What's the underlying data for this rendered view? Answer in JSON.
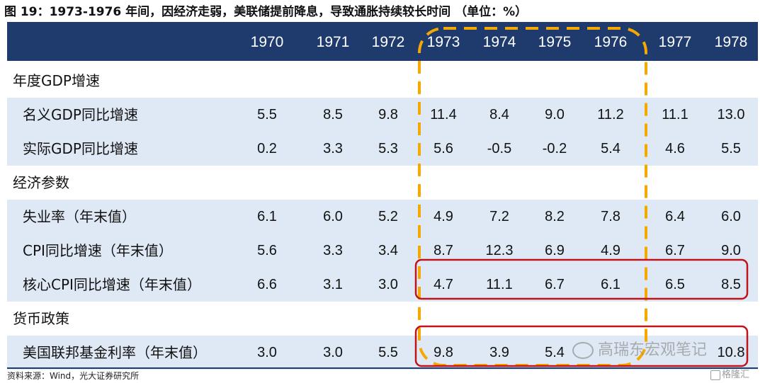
{
  "title": "图 19：1973-1976 年间，因经济走弱，美联储提前降息，导致通胀持续较长时间 （单位：%）",
  "years": [
    "1970",
    "1971",
    "1972",
    "1973",
    "1974",
    "1975",
    "1976",
    "1977",
    "1978"
  ],
  "sections": [
    {
      "label": "年度GDP增速",
      "rows": [
        {
          "label": "名义GDP同比增速",
          "values": [
            "5.5",
            "8.5",
            "9.8",
            "11.4",
            "8.4",
            "9.0",
            "11.2",
            "11.1",
            "13.0"
          ]
        },
        {
          "label": "实际GDP同比增速",
          "values": [
            "0.2",
            "3.3",
            "5.3",
            "5.6",
            "-0.5",
            "-0.2",
            "5.4",
            "4.6",
            "5.5"
          ]
        }
      ]
    },
    {
      "label": "经济参数",
      "rows": [
        {
          "label": "失业率（年末值）",
          "values": [
            "6.1",
            "6.0",
            "5.2",
            "4.9",
            "7.2",
            "8.2",
            "7.8",
            "6.4",
            "6.0"
          ]
        },
        {
          "label": "CPI同比增速（年末值）",
          "values": [
            "5.6",
            "3.3",
            "3.4",
            "8.7",
            "12.3",
            "6.9",
            "4.9",
            "6.7",
            "9.0"
          ]
        },
        {
          "label": "核心CPI同比增速（年末值）",
          "values": [
            "6.6",
            "3.1",
            "3.0",
            "4.7",
            "11.1",
            "6.7",
            "6.1",
            "6.5",
            "8.5"
          ]
        }
      ]
    },
    {
      "label": "货币政策",
      "rows": [
        {
          "label": "美国联邦基金利率（年末值）",
          "values": [
            "3.0",
            "3.0",
            "5.5",
            "9.8",
            "3.9",
            "5.4",
            "",
            "",
            "10.8"
          ]
        }
      ]
    }
  ],
  "source": "资料来源：Wind，光大证券研究所",
  "watermark": "高瑞东宏观笔记",
  "logo": "格隆汇",
  "colors": {
    "header": "#1f3b6e",
    "row_band": "#dfe9f5",
    "highlight_orange": "#f5a800",
    "highlight_red": "#c0131c"
  }
}
